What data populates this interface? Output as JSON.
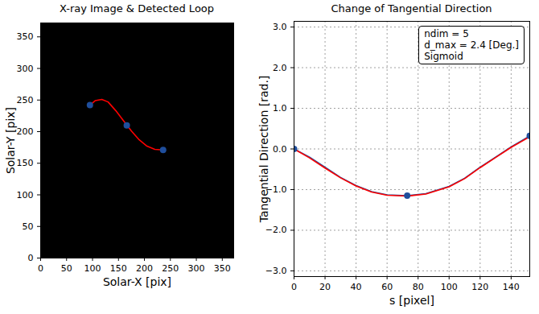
{
  "chart_data": [
    {
      "type": "line",
      "title": "X-ray Image & Detected Loop",
      "x_label": "Solar-X [pix]",
      "y_label": "Solar-Y [pix]",
      "xlim": [
        0,
        372
      ],
      "ylim": [
        0,
        372
      ],
      "xticks": [
        0,
        50,
        100,
        150,
        200,
        250,
        300,
        350
      ],
      "yticks": [
        0,
        50,
        100,
        150,
        200,
        250,
        300,
        350
      ],
      "series": [
        {
          "color": "#ff0000",
          "line_style": "solid",
          "x": [
            95,
            105,
            118,
            130,
            145,
            160,
            175,
            190,
            205,
            220,
            236
          ],
          "values": [
            242,
            249,
            251,
            247,
            233,
            217,
            201,
            187,
            177,
            172,
            171
          ]
        },
        {
          "type": "scatter",
          "color": "#1f4e9c",
          "marker": "circle",
          "x": [
            95,
            166,
            236
          ],
          "values": [
            242,
            210,
            171
          ]
        }
      ]
    },
    {
      "type": "line",
      "title": "Change of Tangential Direction",
      "x_label": "s [pixel]",
      "y_label": "Tangential Direction [rad.]",
      "xlim": [
        0,
        152
      ],
      "ylim": [
        -3.14,
        3.14
      ],
      "xticks": [
        0,
        20,
        40,
        60,
        80,
        100,
        120,
        140
      ],
      "yticks": [
        -3,
        -2,
        -1,
        0,
        1,
        2,
        3
      ],
      "grid": true,
      "annotation": [
        "ndim = 5",
        "d_max = 2.4 [Deg.]",
        "Sigmoid"
      ],
      "series": [
        {
          "color": "#1f4e9c",
          "line_style": "solid",
          "x": [
            0,
            10,
            20,
            30,
            40,
            50,
            60,
            73,
            85,
            100,
            110,
            120,
            130,
            140,
            152
          ],
          "values": [
            0,
            -0.2,
            -0.45,
            -0.7,
            -0.9,
            -1.05,
            -1.13,
            -1.15,
            -1.1,
            -0.92,
            -0.72,
            -0.45,
            -0.2,
            0.05,
            0.32
          ]
        },
        {
          "color": "#ff0000",
          "line_style": "solid",
          "x": [
            0,
            10,
            20,
            30,
            40,
            50,
            60,
            73,
            85,
            100,
            110,
            120,
            130,
            140,
            152
          ],
          "values": [
            0,
            -0.22,
            -0.47,
            -0.71,
            -0.91,
            -1.06,
            -1.14,
            -1.16,
            -1.11,
            -0.93,
            -0.73,
            -0.46,
            -0.21,
            0.04,
            0.3
          ]
        },
        {
          "type": "scatter",
          "color": "#1f4e9c",
          "marker": "circle",
          "x": [
            0,
            73,
            152
          ],
          "values": [
            0,
            -1.15,
            0.32
          ]
        }
      ]
    }
  ]
}
